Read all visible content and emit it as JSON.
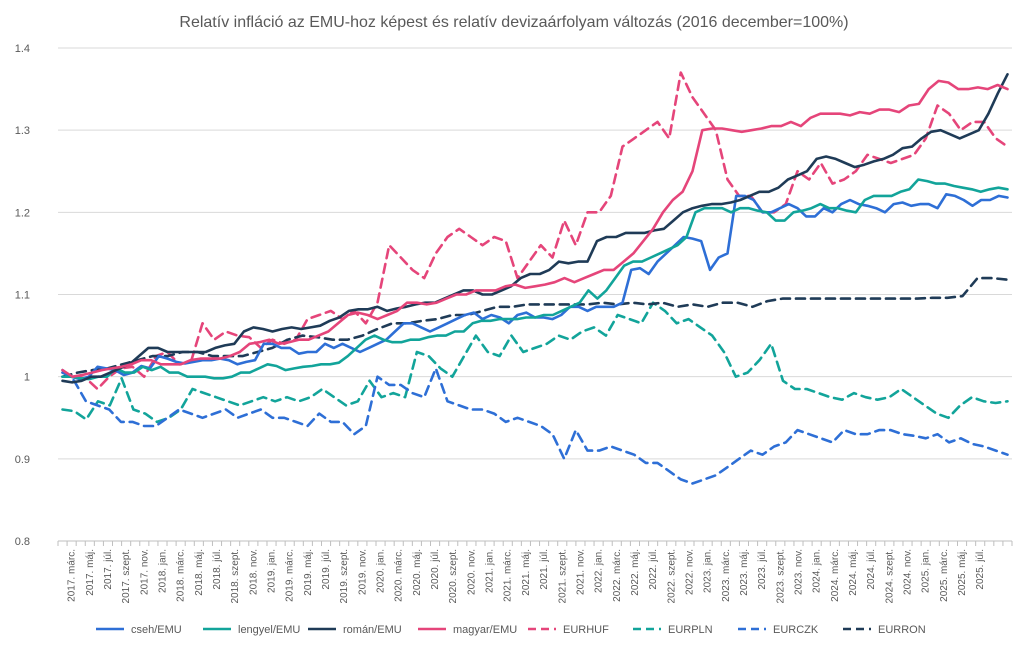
{
  "chart_data": {
    "type": "line",
    "title": "Relatív infláció az EMU-hoz képest és relatív devizaárfolyam változás (2016 december=100%)",
    "xlabel": "",
    "ylabel": "",
    "ylim": [
      0.8,
      1.4
    ],
    "yticks": [
      "0.8",
      "0.9",
      "1",
      "1.1",
      "1.2",
      "1.3",
      "1.4"
    ],
    "grid": true,
    "legend_position": "bottom",
    "x_tick_labels": [
      "2017. márc.",
      "2017. máj.",
      "2017. júl.",
      "2017. szept.",
      "2017. nov.",
      "2018. jan.",
      "2018. márc.",
      "2018. máj.",
      "2018. júl.",
      "2018. szept.",
      "2018. nov.",
      "2019. jan.",
      "2019. márc.",
      "2019. máj.",
      "2019. júl.",
      "2019. szept.",
      "2019. nov.",
      "2020. jan.",
      "2020. márc.",
      "2020. máj.",
      "2020. júl.",
      "2020. szept.",
      "2020. nov.",
      "2021. jan.",
      "2021. márc.",
      "2021. máj.",
      "2021. júl.",
      "2021. szept.",
      "2021. nov.",
      "2022. jan.",
      "2022. márc.",
      "2022. máj.",
      "2022. júl.",
      "2022. szept.",
      "2022. nov.",
      "2023. jan.",
      "2023. márc.",
      "2023. máj.",
      "2023. júl.",
      "2023. szept.",
      "2023. nov.",
      "2024. jan.",
      "2024. márc.",
      "2024. máj.",
      "2024. júl.",
      "2024. szept.",
      "2024. nov.",
      "2025. jan.",
      "2025. márc.",
      "2025. máj.",
      "2025. júl."
    ],
    "x_start_month_index": 1,
    "series": [
      {
        "name": "cseh/EMU",
        "color": "#2E6FD6",
        "dash": false,
        "values": [
          1.005,
          1.0,
          0.997,
          1.0,
          1.012,
          1.01,
          1.008,
          1.002,
          1.005,
          1.013,
          1.01,
          1.025,
          1.022,
          1.018,
          1.016,
          1.018,
          1.02,
          1.02,
          1.022,
          1.02,
          1.015,
          1.018,
          1.02,
          1.04,
          1.04,
          1.035,
          1.035,
          1.028,
          1.03,
          1.03,
          1.04,
          1.035,
          1.04,
          1.035,
          1.03,
          1.035,
          1.04,
          1.045,
          1.055,
          1.065,
          1.065,
          1.06,
          1.055,
          1.06,
          1.065,
          1.07,
          1.075,
          1.078,
          1.07,
          1.075,
          1.072,
          1.065,
          1.075,
          1.078,
          1.072,
          1.072,
          1.07,
          1.075,
          1.085,
          1.085,
          1.08,
          1.085,
          1.085,
          1.085,
          1.09,
          1.13,
          1.132,
          1.125,
          1.14,
          1.15,
          1.16,
          1.17,
          1.168,
          1.165,
          1.13,
          1.145,
          1.15,
          1.22,
          1.22,
          1.215,
          1.2,
          1.2,
          1.205,
          1.21,
          1.205,
          1.195,
          1.195,
          1.205,
          1.2,
          1.21,
          1.215,
          1.21,
          1.208,
          1.205,
          1.2,
          1.21,
          1.212,
          1.208,
          1.21,
          1.21,
          1.205,
          1.222,
          1.22,
          1.215,
          1.208,
          1.215,
          1.215,
          1.22,
          1.218
        ]
      },
      {
        "name": "lengyel/EMU",
        "color": "#12A49A",
        "dash": false,
        "values": [
          1.0,
          1.0,
          0.998,
          0.997,
          1.0,
          1.0,
          1.01,
          1.005,
          1.005,
          1.012,
          1.008,
          1.012,
          1.005,
          1.005,
          1.0,
          1.0,
          1.0,
          0.998,
          0.998,
          1.0,
          1.005,
          1.005,
          1.01,
          1.015,
          1.013,
          1.008,
          1.01,
          1.012,
          1.013,
          1.015,
          1.015,
          1.017,
          1.025,
          1.035,
          1.045,
          1.05,
          1.045,
          1.042,
          1.042,
          1.045,
          1.045,
          1.048,
          1.05,
          1.05,
          1.055,
          1.055,
          1.065,
          1.068,
          1.068,
          1.07,
          1.07,
          1.07,
          1.072,
          1.072,
          1.075,
          1.075,
          1.08,
          1.085,
          1.09,
          1.105,
          1.095,
          1.105,
          1.12,
          1.135,
          1.14,
          1.14,
          1.145,
          1.15,
          1.155,
          1.16,
          1.17,
          1.2,
          1.205,
          1.205,
          1.205,
          1.2,
          1.205,
          1.205,
          1.202,
          1.2,
          1.19,
          1.19,
          1.2,
          1.202,
          1.205,
          1.21,
          1.205,
          1.205,
          1.202,
          1.2,
          1.215,
          1.22,
          1.22,
          1.22,
          1.225,
          1.228,
          1.24,
          1.238,
          1.235,
          1.235,
          1.232,
          1.23,
          1.228,
          1.225,
          1.228,
          1.23,
          1.228
        ]
      },
      {
        "name": "román/EMU",
        "color": "#1F3B57",
        "dash": false,
        "values": [
          0.995,
          0.993,
          0.995,
          1.0,
          1.0,
          1.005,
          1.01,
          1.015,
          1.025,
          1.035,
          1.035,
          1.03,
          1.03,
          1.03,
          1.03,
          1.03,
          1.035,
          1.038,
          1.04,
          1.055,
          1.06,
          1.058,
          1.055,
          1.058,
          1.06,
          1.058,
          1.06,
          1.062,
          1.068,
          1.072,
          1.08,
          1.082,
          1.082,
          1.085,
          1.08,
          1.083,
          1.085,
          1.088,
          1.09,
          1.09,
          1.095,
          1.1,
          1.105,
          1.105,
          1.1,
          1.1,
          1.105,
          1.11,
          1.12,
          1.125,
          1.125,
          1.13,
          1.14,
          1.138,
          1.14,
          1.14,
          1.165,
          1.17,
          1.17,
          1.175,
          1.175,
          1.175,
          1.178,
          1.18,
          1.19,
          1.2,
          1.205,
          1.208,
          1.21,
          1.21,
          1.212,
          1.215,
          1.22,
          1.225,
          1.225,
          1.23,
          1.24,
          1.245,
          1.25,
          1.265,
          1.268,
          1.265,
          1.26,
          1.255,
          1.258,
          1.262,
          1.265,
          1.27,
          1.278,
          1.28,
          1.29,
          1.298,
          1.3,
          1.295,
          1.29,
          1.295,
          1.3,
          1.32,
          1.345,
          1.368
        ]
      },
      {
        "name": "magyar/EMU",
        "color": "#E5457A",
        "dash": false,
        "values": [
          1.008,
          1.0,
          1.002,
          1.005,
          1.008,
          1.01,
          1.012,
          1.015,
          1.02,
          1.02,
          1.015,
          1.015,
          1.015,
          1.02,
          1.022,
          1.022,
          1.022,
          1.025,
          1.03,
          1.04,
          1.042,
          1.045,
          1.04,
          1.042,
          1.045,
          1.045,
          1.05,
          1.055,
          1.065,
          1.075,
          1.078,
          1.075,
          1.07,
          1.075,
          1.08,
          1.09,
          1.09,
          1.088,
          1.09,
          1.095,
          1.1,
          1.1,
          1.105,
          1.105,
          1.105,
          1.11,
          1.112,
          1.108,
          1.11,
          1.112,
          1.115,
          1.12,
          1.115,
          1.12,
          1.125,
          1.13,
          1.13,
          1.14,
          1.15,
          1.165,
          1.18,
          1.2,
          1.215,
          1.225,
          1.25,
          1.3,
          1.302,
          1.302,
          1.3,
          1.298,
          1.3,
          1.302,
          1.305,
          1.305,
          1.31,
          1.305,
          1.315,
          1.32,
          1.32,
          1.32,
          1.318,
          1.322,
          1.32,
          1.325,
          1.325,
          1.322,
          1.33,
          1.332,
          1.35,
          1.36,
          1.358,
          1.35,
          1.35,
          1.352,
          1.35,
          1.355,
          1.35
        ]
      },
      {
        "name": "EURHUF",
        "color": "#E5457A",
        "dash": true,
        "values": [
          1.005,
          1.0,
          0.998,
          0.985,
          1.0,
          1.01,
          1.012,
          1.0,
          1.025,
          1.03,
          1.015,
          1.018,
          1.065,
          1.045,
          1.055,
          1.05,
          1.048,
          1.035,
          1.045,
          1.04,
          1.045,
          1.07,
          1.075,
          1.08,
          1.07,
          1.08,
          1.065,
          1.09,
          1.16,
          1.145,
          1.13,
          1.12,
          1.15,
          1.17,
          1.18,
          1.17,
          1.16,
          1.17,
          1.165,
          1.12,
          1.14,
          1.16,
          1.145,
          1.19,
          1.16,
          1.2,
          1.2,
          1.22,
          1.28,
          1.29,
          1.3,
          1.31,
          1.29,
          1.37,
          1.34,
          1.32,
          1.3,
          1.24,
          1.22,
          1.22,
          1.2,
          1.2,
          1.21,
          1.25,
          1.24,
          1.26,
          1.235,
          1.24,
          1.25,
          1.27,
          1.265,
          1.26,
          1.265,
          1.27,
          1.29,
          1.33,
          1.32,
          1.3,
          1.31,
          1.31,
          1.29,
          1.28
        ]
      },
      {
        "name": "EURPLN",
        "color": "#12A49A",
        "dash": true,
        "values": [
          0.96,
          0.958,
          0.948,
          0.97,
          0.965,
          0.998,
          0.96,
          0.955,
          0.945,
          0.95,
          0.96,
          0.985,
          0.98,
          0.975,
          0.97,
          0.965,
          0.97,
          0.975,
          0.97,
          0.975,
          0.97,
          0.975,
          0.985,
          0.975,
          0.965,
          0.97,
          0.995,
          0.975,
          0.98,
          0.975,
          1.03,
          1.025,
          1.01,
          1.0,
          1.025,
          1.05,
          1.03,
          1.025,
          1.05,
          1.03,
          1.035,
          1.04,
          1.05,
          1.045,
          1.055,
          1.06,
          1.05,
          1.075,
          1.07,
          1.065,
          1.09,
          1.08,
          1.065,
          1.07,
          1.06,
          1.05,
          1.03,
          1.0,
          1.005,
          1.02,
          1.04,
          0.995,
          0.985,
          0.985,
          0.98,
          0.975,
          0.972,
          0.98,
          0.975,
          0.972,
          0.975,
          0.985,
          0.975,
          0.965,
          0.955,
          0.95,
          0.965,
          0.975,
          0.97,
          0.968,
          0.97
        ]
      },
      {
        "name": "EURCZK",
        "color": "#2E6FD6",
        "dash": true,
        "values": [
          1.008,
          0.995,
          0.97,
          0.965,
          0.96,
          0.945,
          0.945,
          0.94,
          0.94,
          0.95,
          0.96,
          0.955,
          0.95,
          0.955,
          0.96,
          0.95,
          0.955,
          0.96,
          0.95,
          0.95,
          0.945,
          0.94,
          0.955,
          0.945,
          0.945,
          0.93,
          0.94,
          1.0,
          0.99,
          0.99,
          0.98,
          0.975,
          1.01,
          0.97,
          0.965,
          0.96,
          0.96,
          0.955,
          0.945,
          0.95,
          0.945,
          0.94,
          0.93,
          0.9,
          0.935,
          0.91,
          0.91,
          0.915,
          0.91,
          0.905,
          0.895,
          0.895,
          0.885,
          0.875,
          0.87,
          0.875,
          0.88,
          0.89,
          0.9,
          0.91,
          0.905,
          0.915,
          0.92,
          0.935,
          0.93,
          0.925,
          0.92,
          0.935,
          0.93,
          0.93,
          0.935,
          0.935,
          0.93,
          0.928,
          0.925,
          0.93,
          0.92,
          0.925,
          0.918,
          0.915,
          0.91,
          0.905
        ]
      },
      {
        "name": "EURRON",
        "color": "#1F3B57",
        "dash": true,
        "values": [
          1.0,
          1.005,
          1.008,
          1.01,
          1.015,
          1.02,
          1.025,
          1.025,
          1.03,
          1.03,
          1.025,
          1.025,
          1.025,
          1.03,
          1.035,
          1.045,
          1.05,
          1.048,
          1.045,
          1.045,
          1.05,
          1.058,
          1.065,
          1.065,
          1.068,
          1.07,
          1.075,
          1.075,
          1.08,
          1.085,
          1.085,
          1.088,
          1.088,
          1.088,
          1.088,
          1.088,
          1.09,
          1.088,
          1.09,
          1.088,
          1.09,
          1.085,
          1.088,
          1.085,
          1.09,
          1.09,
          1.085,
          1.092,
          1.095,
          1.095,
          1.095,
          1.095,
          1.095,
          1.095,
          1.095,
          1.095,
          1.095,
          1.095,
          1.096,
          1.096,
          1.098,
          1.12,
          1.12,
          1.118
        ]
      }
    ]
  }
}
